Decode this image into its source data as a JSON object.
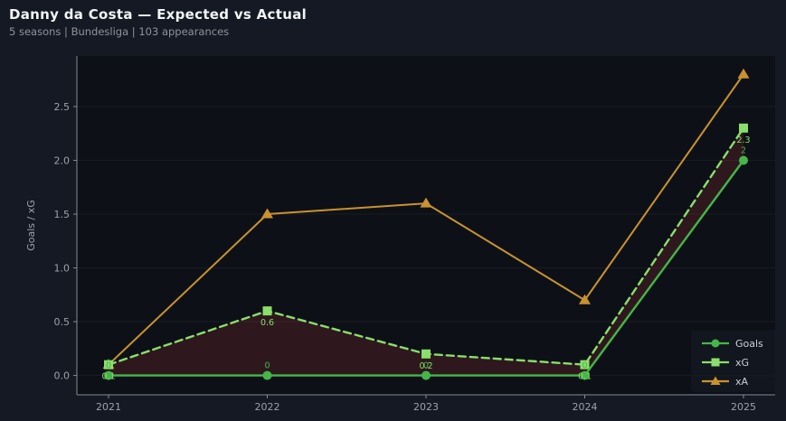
{
  "header": {
    "title": "Danny da Costa — Expected vs Actual",
    "subtitle": "5 seasons | Bundesliga | 103 appearances"
  },
  "chart_data": {
    "type": "line",
    "title": "Danny da Costa — Expected vs Actual",
    "subtitle": "5 seasons | Bundesliga | 103 appearances",
    "x": [
      "2021",
      "2022",
      "2023",
      "2024",
      "2025"
    ],
    "series": [
      {
        "name": "Goals",
        "values": [
          0,
          0,
          0,
          0,
          2
        ],
        "point_labels": [
          "0",
          "0",
          "0",
          "0",
          "2"
        ],
        "color": "#45b649",
        "marker": "circle",
        "line_style": "solid"
      },
      {
        "name": "xG",
        "values": [
          0.1,
          0.6,
          0.2,
          0.1,
          2.3
        ],
        "point_labels": [
          "0.1",
          "0.6",
          "0.2",
          "0.1",
          "2.3"
        ],
        "color": "#8ade6c",
        "marker": "square",
        "line_style": "dashed"
      },
      {
        "name": "xA",
        "values": [
          0.1,
          1.5,
          1.6,
          0.7,
          2.8
        ],
        "point_labels": [],
        "color": "#c9922f",
        "marker": "triangle",
        "line_style": "solid"
      }
    ],
    "xlabel": "",
    "ylabel": "Goals / xG",
    "yticks": [
      "0.0",
      "0.5",
      "1.0",
      "1.5",
      "2.0",
      "2.5"
    ],
    "ylim": [
      -0.18,
      2.97
    ],
    "grid": "horizontal faint gridlines at each y tick",
    "legend": {
      "position": "lower right",
      "entries": [
        "Goals",
        "xG",
        "xA"
      ]
    },
    "fill_between": {
      "upper": "xG",
      "lower": "Goals",
      "color": "rgba(200,60,60,0.18)"
    }
  },
  "colors": {
    "figure_background": "#151923",
    "plot_background": "#0d1117",
    "title_text": "#f2f4f7",
    "subtitle_text": "#8d939e",
    "axis_text": "#9ba1ab",
    "spine": "#848a94",
    "gridline": "rgba(255,255,255,0.05)",
    "goals_green": "#45b649",
    "xg_green": "#8ade6c",
    "xa_orange": "#c9922f",
    "underperformance_fill": "rgba(200,60,60,0.18)"
  }
}
